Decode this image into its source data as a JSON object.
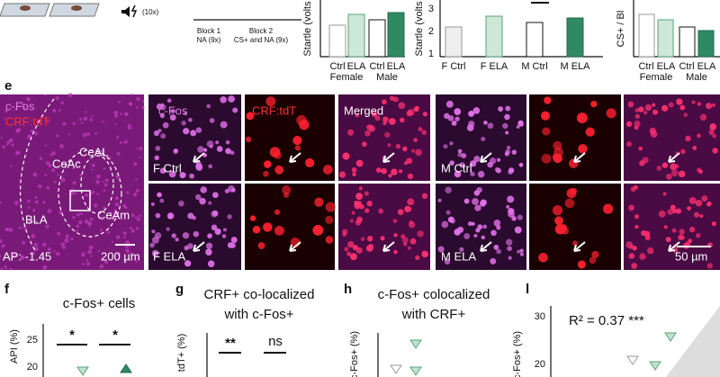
{
  "top": {
    "protocol": {
      "reps": "(10x)",
      "block1": [
        "Block 1",
        "NA (9x)"
      ],
      "block2": [
        "Block 2",
        "CS+ and NA (9x)"
      ]
    },
    "chart1": {
      "ylabel": "Startle (volts",
      "categories": [
        "Ctrl",
        "ELA",
        "Ctrl",
        "ELA"
      ],
      "groups": [
        "Female",
        "Male"
      ]
    },
    "chart2": {
      "ylabel": "Startle (volts",
      "ticks": [
        "3",
        "2",
        "1"
      ],
      "categories": [
        "F Ctrl",
        "F ELA",
        "M Ctrl",
        "M ELA"
      ]
    },
    "chart3": {
      "ylabel": "CS+ / Bl",
      "categories": [
        "Ctrl",
        "ELA",
        "Ctrl",
        "ELA"
      ],
      "groups": [
        "Female",
        "Male"
      ]
    }
  },
  "panel_e": {
    "label": "e",
    "overview": {
      "stains": [
        "c-Fos",
        "CRF:tdT"
      ],
      "regions": [
        "CeAL",
        "CeAc",
        "CeAm",
        "BLA"
      ],
      "coordinate": "AP: -1.45",
      "scale": "200 µm"
    },
    "columns": [
      "c-Fos",
      "CRF:tdT",
      "Merged"
    ],
    "rows": [
      "F Ctrl",
      "F ELA",
      "M Ctrl",
      "M ELA"
    ],
    "scale": "50 µm"
  },
  "panel_f": {
    "label": "f",
    "title": "c-Fos+ cells",
    "ylabel": "API (%)",
    "ticks": [
      "25",
      "20"
    ],
    "sig": [
      "*",
      "*"
    ]
  },
  "panel_g": {
    "label": "g",
    "title": [
      "CRF+ co-localized",
      "with c-Fos+"
    ],
    "ylabel": "tdT+ (%)",
    "sig": [
      "**",
      "ns"
    ]
  },
  "panel_h": {
    "label": "h",
    "title": [
      "c-Fos+ colocalized",
      "with CRF+"
    ],
    "ylabel": "c-Fos+ (%)"
  },
  "panel_l": {
    "label": "l",
    "stat": "R² = 0.37 ***",
    "ylabel": "c-Fos+ (%)",
    "ticks": [
      "30",
      "20"
    ]
  }
}
